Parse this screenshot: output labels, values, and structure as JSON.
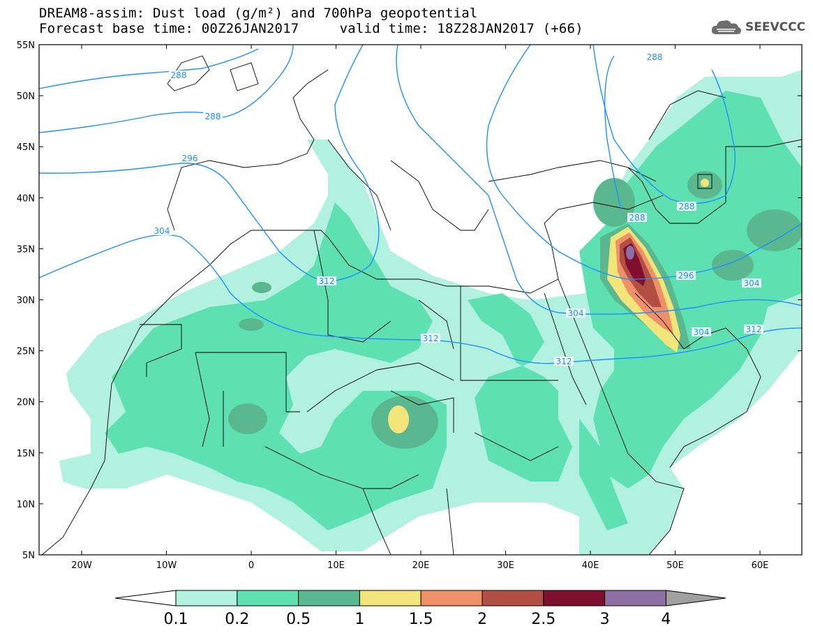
{
  "header": {
    "line1": "DREAM8-assim: Dust load (g/m²) and 700hPa geopotential",
    "line2": "Forecast base time: 00Z26JAN2017     valid time: 18Z28JAN2017 (+66)"
  },
  "logo": {
    "text": "SEEVCCC",
    "icon": "cloud-icon"
  },
  "axes": {
    "lat_labels": [
      "55N",
      "50N",
      "45N",
      "40N",
      "35N",
      "30N",
      "25N",
      "20N",
      "15N",
      "10N",
      "5N"
    ],
    "lon_labels": [
      "20W",
      "10W",
      "0",
      "10E",
      "20E",
      "30E",
      "40E",
      "50E",
      "60E"
    ]
  },
  "contour_labels": [
    "288",
    "288",
    "296",
    "304",
    "312",
    "304",
    "312",
    "312",
    "288",
    "288",
    "288",
    "296",
    "304",
    "304",
    "312"
  ],
  "colorbar": {
    "levels": [
      "0.1",
      "0.2",
      "0.5",
      "1",
      "1.5",
      "2",
      "2.5",
      "3",
      "4"
    ],
    "colors": [
      "#b2f0e0",
      "#5fe0b2",
      "#5bb88e",
      "#f0e47a",
      "#ee9168",
      "#b24f45",
      "#7e0f2f",
      "#8e6fa3"
    ],
    "min_color": "#ffffff",
    "max_color": "#a0a0a0"
  },
  "colors": {
    "contour": "#1e90ff",
    "frame": "#000000"
  }
}
